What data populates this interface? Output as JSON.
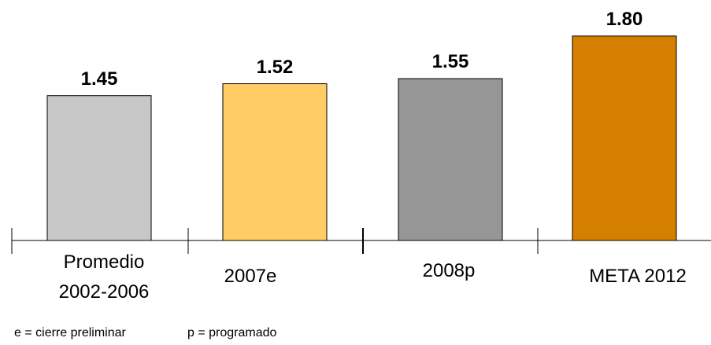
{
  "chart_data": {
    "type": "bar",
    "categories": [
      "Promedio\n2002-2006",
      "2007e",
      "2008p",
      "META 2012"
    ],
    "values": [
      1.45,
      1.52,
      1.55,
      1.8
    ],
    "value_labels": [
      "1.45",
      "1.52",
      "1.55",
      "1.80"
    ],
    "colors": [
      "#c8c8c8",
      "#ffcc66",
      "#969696",
      "#d57f00"
    ],
    "ylim": [
      0.6,
      1.85
    ],
    "notes": [
      "e = cierre preliminar",
      "p = programado"
    ]
  }
}
